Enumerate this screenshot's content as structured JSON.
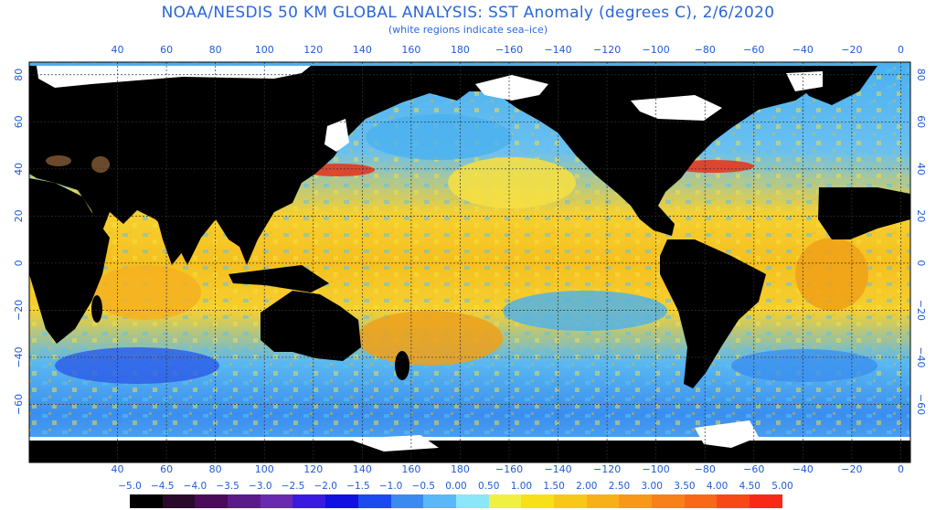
{
  "header": {
    "title": "NOAA/NESDIS 50 KM GLOBAL ANALYSIS: SST Anomaly (degrees C), 2/6/2020",
    "subtitle": "(white regions indicate sea–ice)"
  },
  "axes": {
    "lon_labels": [
      "40",
      "60",
      "80",
      "100",
      "120",
      "140",
      "160",
      "180",
      "−160",
      "−140",
      "−120",
      "−100",
      "−80",
      "−60",
      "−40",
      "−20",
      "0"
    ],
    "lat_labels": [
      "80",
      "60",
      "40",
      "20",
      "0",
      "−20",
      "−40",
      "−60"
    ],
    "lon_values": [
      40,
      60,
      80,
      100,
      120,
      140,
      160,
      180,
      200,
      220,
      240,
      260,
      280,
      300,
      320,
      340,
      360
    ],
    "lat_values": [
      80,
      60,
      40,
      20,
      0,
      -20,
      -40,
      -60
    ]
  },
  "legend": {
    "labels": [
      "−5.0",
      "−4.5",
      "−4.0",
      "−3.5",
      "−3.0",
      "−2.5",
      "−2.0",
      "−1.5",
      "−1.0",
      "−0.5",
      "0.00",
      "0.50",
      "1.00",
      "1.50",
      "2.00",
      "2.50",
      "3.00",
      "3.50",
      "4.00",
      "4.50",
      "5.00"
    ],
    "colors": [
      "#000000",
      "#2a0a2a",
      "#4b0a5a",
      "#5a1a8a",
      "#6a2ab0",
      "#3a1ae0",
      "#1010e0",
      "#1a4af0",
      "#3a8af0",
      "#5ab8f8",
      "#8ae6f8",
      "#f0f040",
      "#f8e018",
      "#f8c818",
      "#f8b018",
      "#f89818",
      "#f88018",
      "#f86818",
      "#f84818",
      "#f82818",
      "#e00000"
    ]
  },
  "map": {
    "land_color": "#000000",
    "ice_color": "#ffffff",
    "ocean_warm_color": "#f5c518",
    "ocean_cool_color": "#4ab4f0"
  }
}
